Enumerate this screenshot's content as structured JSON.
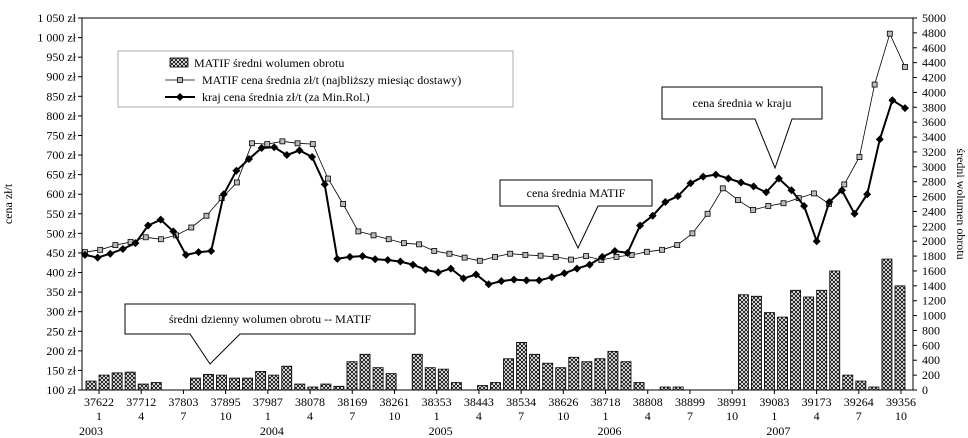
{
  "chart_data": {
    "type": "bar+line",
    "ylabel_left": "cena zł/t",
    "ylabel_right": "średni wolumen obrotu",
    "left_axis": {
      "min": 100,
      "max": 1050,
      "step": 50,
      "suffix": " zł"
    },
    "right_axis": {
      "min": 0,
      "max": 5000,
      "step": 200
    },
    "x_labels": {
      "dates": [
        "37622",
        "37712",
        "37803",
        "37895",
        "37987",
        "38078",
        "38169",
        "38261",
        "38353",
        "38443",
        "38534",
        "38626",
        "38718",
        "38808",
        "38899",
        "38991",
        "39083",
        "39173",
        "39264",
        "39356"
      ],
      "months": [
        "1",
        "4",
        "7",
        "10",
        "1",
        "4",
        "7",
        "10",
        "1",
        "4",
        "7",
        "10",
        "1",
        "4",
        "7",
        "10",
        "1",
        "4",
        "7",
        "10"
      ],
      "years": [
        "2003",
        "2004",
        "2005",
        "2006",
        "2007"
      ]
    },
    "series": [
      {
        "name": "MATIF średni wolumen obrotu",
        "type": "bar",
        "axis": "right",
        "values": [
          120,
          200,
          230,
          240,
          80,
          100,
          0,
          0,
          160,
          210,
          200,
          160,
          160,
          250,
          200,
          320,
          80,
          40,
          80,
          50,
          380,
          480,
          300,
          220,
          0,
          480,
          300,
          280,
          100,
          0,
          60,
          100,
          420,
          640,
          480,
          360,
          300,
          440,
          380,
          420,
          520,
          380,
          100,
          0,
          40,
          40,
          0,
          0,
          0,
          0,
          1280,
          1260,
          1040,
          980,
          1340,
          1250,
          1340,
          1600,
          200,
          120,
          40,
          1760,
          1400
        ]
      },
      {
        "name": "MATIF cena średnia zł/t (najbliższy miesiąc dostawy)",
        "type": "line",
        "axis": "left",
        "values": [
          452,
          458,
          470,
          478,
          490,
          485,
          495,
          515,
          545,
          590,
          630,
          730,
          728,
          735,
          730,
          728,
          640,
          575,
          505,
          495,
          485,
          475,
          472,
          455,
          448,
          438,
          430,
          440,
          448,
          445,
          443,
          440,
          433,
          442,
          432,
          440,
          445,
          453,
          458,
          470,
          500,
          550,
          615,
          585,
          560,
          570,
          577,
          590,
          602,
          575,
          625,
          695,
          880,
          1010,
          925
        ]
      },
      {
        "name": "kraj cena średnia zł/t (za Min.Rol.)",
        "type": "line",
        "axis": "left",
        "values": [
          445,
          438,
          448,
          460,
          475,
          520,
          535,
          505,
          445,
          452,
          455,
          600,
          660,
          690,
          718,
          720,
          700,
          712,
          695,
          625,
          435,
          440,
          442,
          434,
          432,
          428,
          420,
          407,
          400,
          410,
          385,
          395,
          370,
          378,
          382,
          380,
          380,
          388,
          398,
          410,
          420,
          440,
          455,
          450,
          520,
          545,
          580,
          595,
          628,
          645,
          650,
          640,
          630,
          620,
          605,
          640,
          610,
          570,
          480,
          580,
          610,
          550,
          600,
          740,
          840,
          820
        ]
      }
    ],
    "annotations": [
      "cena średnia w kraju",
      "cena średnia MATIF",
      "średni dzienny wolumen obrotu -- MATIF"
    ]
  }
}
